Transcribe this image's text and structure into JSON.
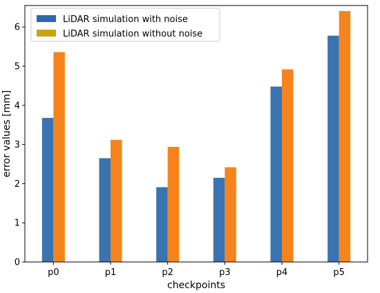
{
  "chart_data": {
    "type": "bar",
    "title": "",
    "xlabel": "checkpoints",
    "ylabel": "error values [mm]",
    "categories": [
      "p0",
      "p1",
      "p2",
      "p3",
      "p4",
      "p5"
    ],
    "ylim": [
      0,
      6.55
    ],
    "yticks": [
      0,
      1,
      2,
      3,
      4,
      5,
      6
    ],
    "grid": false,
    "legend_position": "top-left",
    "series": [
      {
        "name": "LiDAR simulation with noise",
        "color": "#3a73b1",
        "legend_color": "#2e67ab",
        "values": [
          3.68,
          2.65,
          1.91,
          2.15,
          4.48,
          5.78
        ]
      },
      {
        "name": "LiDAR simulation without noise",
        "color": "#f6841b",
        "legend_color": "#c9a416",
        "values": [
          5.36,
          3.12,
          2.94,
          2.42,
          4.92,
          6.41
        ]
      }
    ]
  }
}
